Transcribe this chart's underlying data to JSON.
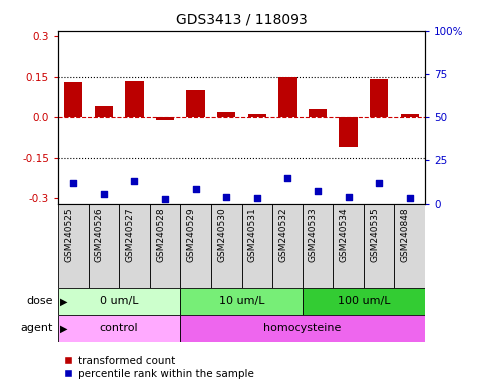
{
  "title": "GDS3413 / 118093",
  "samples": [
    "GSM240525",
    "GSM240526",
    "GSM240527",
    "GSM240528",
    "GSM240529",
    "GSM240530",
    "GSM240531",
    "GSM240532",
    "GSM240533",
    "GSM240534",
    "GSM240535",
    "GSM240848"
  ],
  "red_bars": [
    0.13,
    0.04,
    0.135,
    -0.01,
    0.1,
    0.02,
    0.01,
    0.148,
    0.03,
    -0.11,
    0.143,
    0.01
  ],
  "blue_y_left": [
    -0.245,
    -0.285,
    -0.235,
    -0.305,
    -0.265,
    -0.295,
    -0.3,
    -0.225,
    -0.275,
    -0.295,
    -0.245,
    -0.3
  ],
  "ylim": [
    -0.32,
    0.32
  ],
  "yticks_left": [
    -0.3,
    -0.15,
    0.0,
    0.15,
    0.3
  ],
  "yticks_right": [
    0,
    25,
    50,
    75,
    100
  ],
  "dose_groups": [
    {
      "label": "0 um/L",
      "start": 0,
      "end": 4,
      "color": "#ccffcc"
    },
    {
      "label": "10 um/L",
      "start": 4,
      "end": 8,
      "color": "#77ee77"
    },
    {
      "label": "100 um/L",
      "start": 8,
      "end": 12,
      "color": "#33cc33"
    }
  ],
  "agent_groups": [
    {
      "label": "control",
      "start": 0,
      "end": 4,
      "color": "#ffaaff"
    },
    {
      "label": "homocysteine",
      "start": 4,
      "end": 12,
      "color": "#ee66ee"
    }
  ],
  "bar_color": "#bb0000",
  "dot_color": "#0000bb",
  "legend_red": "transformed count",
  "legend_blue": "percentile rank within the sample",
  "xlabel_dose": "dose",
  "xlabel_agent": "agent"
}
